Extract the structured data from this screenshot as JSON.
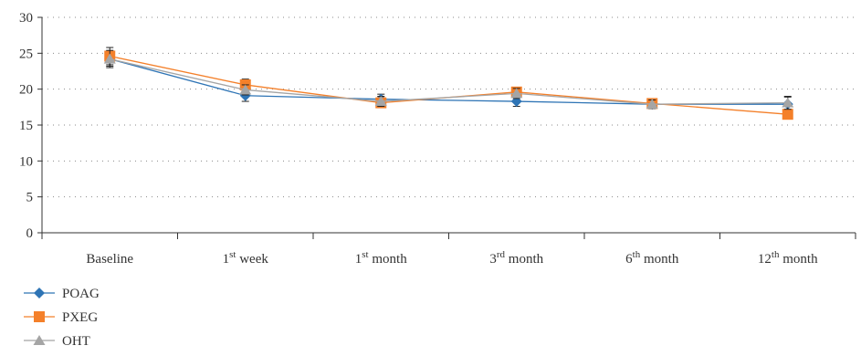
{
  "chart_data": {
    "type": "line",
    "categories": [
      {
        "base": "Baseline",
        "sup": "",
        "rest": ""
      },
      {
        "base": "1",
        "sup": "st",
        "rest": " week"
      },
      {
        "base": "1",
        "sup": "st",
        "rest": " month"
      },
      {
        "base": "3",
        "sup": "rd",
        "rest": " month"
      },
      {
        "base": "6",
        "sup": "th",
        "rest": " month"
      },
      {
        "base": "12",
        "sup": "th",
        "rest": " month"
      }
    ],
    "ylim": [
      0,
      30
    ],
    "yticks": [
      0,
      5,
      10,
      15,
      20,
      25,
      30
    ],
    "grid": true,
    "legend_position": "bottom-left",
    "series": [
      {
        "name": "POAG",
        "color": "#2e74b5",
        "marker": "diamond",
        "values": [
          24.2,
          19.1,
          18.6,
          18.3,
          17.9,
          17.9
        ],
        "errors": [
          1.0,
          0.8,
          0.7,
          0.7,
          0.6,
          1.0
        ]
      },
      {
        "name": "PXEG",
        "color": "#f4802a",
        "marker": "square",
        "values": [
          24.6,
          20.6,
          18.1,
          19.6,
          18.0,
          16.5
        ],
        "errors": [
          1.2,
          0.8,
          0.6,
          0.6,
          0.6,
          0.6
        ]
      },
      {
        "name": "OHT",
        "color": "#a5a5a5",
        "marker": "triangle",
        "values": [
          24.2,
          19.9,
          18.3,
          19.4,
          17.9,
          18.1
        ],
        "errors": [
          1.2,
          0.7,
          0.7,
          0.7,
          0.6,
          0.9
        ]
      }
    ]
  }
}
